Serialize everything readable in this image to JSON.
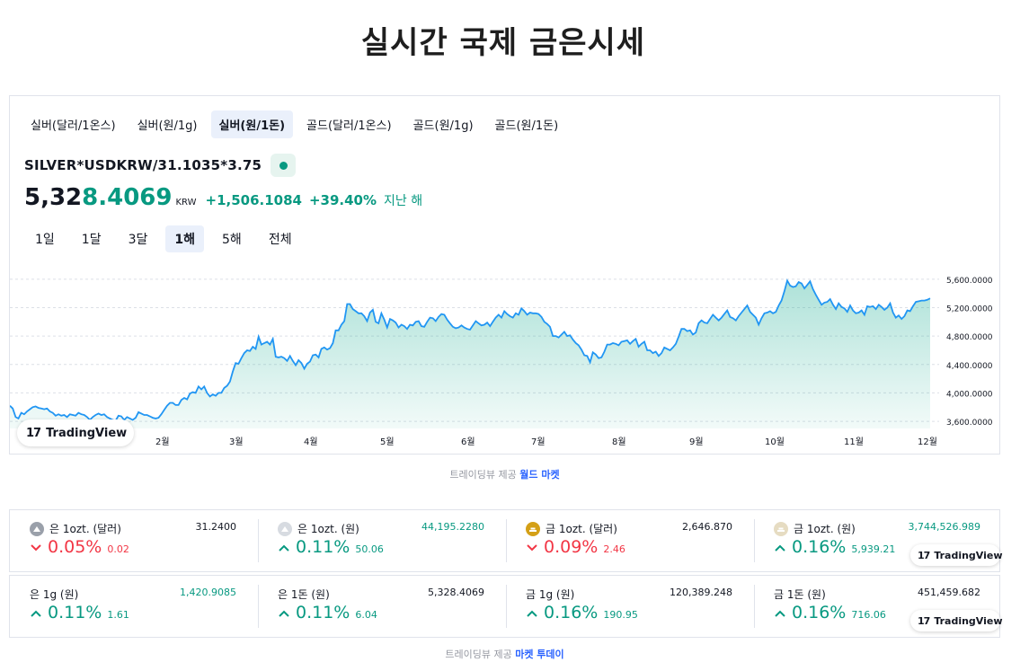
{
  "page": {
    "title": "실시간 국제 금은시세"
  },
  "widget": {
    "symbol_tabs": [
      {
        "label": "실버(달러/1온스)",
        "active": false
      },
      {
        "label": "실버(원/1g)",
        "active": false
      },
      {
        "label": "실버(원/1돈)",
        "active": true
      },
      {
        "label": "골드(달러/1온스)",
        "active": false
      },
      {
        "label": "골드(원/1g)",
        "active": false
      },
      {
        "label": "골드(원/1돈)",
        "active": false
      }
    ],
    "symbol": "SILVER*USDKRW/31.1035*3.75",
    "price_main": "5,32",
    "price_tail": "8.4069",
    "unit": "KRW",
    "change": "+1,506.1084",
    "change_pct": "+39.40%",
    "period": "지난 해",
    "range_tabs": [
      {
        "label": "1일",
        "active": false
      },
      {
        "label": "1달",
        "active": false
      },
      {
        "label": "3달",
        "active": false
      },
      {
        "label": "1해",
        "active": true
      },
      {
        "label": "5해",
        "active": false
      },
      {
        "label": "전체",
        "active": false
      }
    ],
    "tv_brand": "TradingView"
  },
  "chart_data": {
    "type": "area",
    "x_labels": [
      "2월",
      "3월",
      "4월",
      "5월",
      "6월",
      "7월",
      "8월",
      "9월",
      "10월",
      "11월",
      "12월"
    ],
    "y_ticks": [
      "3,600.0000",
      "4,000.0000",
      "4,400.0000",
      "4,800.0000",
      "5,200.0000",
      "5,600.0000"
    ],
    "ylim": [
      3500,
      5800
    ],
    "grid": true,
    "line_color": "#2196f3",
    "values": [
      3820,
      3780,
      3660,
      3640,
      3720,
      3700,
      3740,
      3770,
      3800,
      3810,
      3790,
      3780,
      3770,
      3780,
      3740,
      3720,
      3680,
      3700,
      3680,
      3690,
      3660,
      3700,
      3690,
      3680,
      3720,
      3700,
      3690,
      3660,
      3620,
      3660,
      3690,
      3710,
      3690,
      3700,
      3660,
      3640,
      3620,
      3610,
      3680,
      3670,
      3620,
      3660,
      3640,
      3620,
      3650,
      3730,
      3710,
      3690,
      3690,
      3670,
      3650,
      3640,
      3650,
      3700,
      3760,
      3820,
      3860,
      3860,
      3830,
      3830,
      3900,
      3930,
      3910,
      3990,
      4010,
      4000,
      4090,
      4050,
      4090,
      4000,
      3950,
      3980,
      3960,
      4000,
      4000,
      4070,
      4100,
      4160,
      4300,
      4420,
      4410,
      4490,
      4560,
      4600,
      4590,
      4650,
      4620,
      4790,
      4680,
      4700,
      4720,
      4680,
      4760,
      4510,
      4500,
      4510,
      4490,
      4450,
      4520,
      4450,
      4390,
      4460,
      4420,
      4340,
      4410,
      4440,
      4530,
      4540,
      4500,
      4620,
      4640,
      4610,
      4630,
      4700,
      4880,
      4880,
      4960,
      5010,
      5250,
      5250,
      5180,
      5150,
      5120,
      5120,
      5080,
      5010,
      5130,
      5170,
      5000,
      4980,
      5120,
      5030,
      4920,
      5040,
      5020,
      4990,
      4920,
      4960,
      4940,
      4900,
      4960,
      4950,
      5000,
      5010,
      4940,
      4930,
      5000,
      5060,
      5050,
      5010,
      5070,
      5110,
      5100,
      5030,
      4980,
      4930,
      4910,
      4920,
      4950,
      4920,
      4900,
      4890,
      4950,
      5010,
      4980,
      4950,
      4960,
      4990,
      4940,
      5000,
      5060,
      5100,
      5060,
      5150,
      5110,
      5080,
      5060,
      5120,
      5100,
      5190,
      5150,
      5100,
      5130,
      5120,
      5120,
      5110,
      5070,
      5000,
      4970,
      4930,
      4800,
      4800,
      4780,
      4820,
      4860,
      4800,
      4810,
      4750,
      4700,
      4670,
      4610,
      4530,
      4520,
      4430,
      4570,
      4540,
      4490,
      4500,
      4580,
      4680,
      4680,
      4700,
      4690,
      4670,
      4720,
      4730,
      4740,
      4690,
      4730,
      4760,
      4650,
      4690,
      4720,
      4600,
      4600,
      4560,
      4580,
      4520,
      4560,
      4640,
      4620,
      4600,
      4640,
      4690,
      4790,
      4900,
      4900,
      4870,
      4880,
      4820,
      4850,
      4980,
      5020,
      4990,
      4980,
      5040,
      5100,
      5060,
      5020,
      5060,
      5110,
      5160,
      5070,
      5050,
      5020,
      5080,
      5130,
      5180,
      5230,
      5140,
      5100,
      5060,
      4960,
      5050,
      5120,
      5130,
      5150,
      5120,
      5140,
      5230,
      5300,
      5430,
      5580,
      5510,
      5490,
      5500,
      5560,
      5540,
      5470,
      5520,
      5570,
      5460,
      5380,
      5310,
      5240,
      5270,
      5280,
      5320,
      5240,
      5180,
      5260,
      5210,
      5190,
      5140,
      5230,
      5160,
      5120,
      5130,
      5160,
      5100,
      5220,
      5210,
      5220,
      5180,
      5240,
      5210,
      5170,
      5200,
      5260,
      5130,
      5060,
      5090,
      5040,
      5080,
      5160,
      5150,
      5220,
      5280,
      5290,
      5300,
      5300,
      5310,
      5330
    ]
  },
  "credits": {
    "top": {
      "prefix": "트레이딩뷰 제공",
      "link": "월드 마켓"
    },
    "bottom": {
      "prefix": "트레이딩뷰 제공",
      "link": "마켓 투데이"
    }
  },
  "tickers_row1": [
    {
      "name": "은 1ozt. (달러)",
      "price": "31.2400",
      "pct": "0.05%",
      "abs": "0.02",
      "dir": "down",
      "coin": "silver",
      "price_color": "neutral"
    },
    {
      "name": "은 1ozt. (원)",
      "price": "44,195.2280",
      "pct": "0.11%",
      "abs": "50.06",
      "dir": "up",
      "coin": "silver-light",
      "price_color": "green"
    },
    {
      "name": "금 1ozt. (달러)",
      "price": "2,646.870",
      "pct": "0.09%",
      "abs": "2.46",
      "dir": "down",
      "coin": "gold",
      "price_color": "neutral"
    },
    {
      "name": "금 1ozt. (원)",
      "price": "3,744,526.989",
      "pct": "0.16%",
      "abs": "5,939.21",
      "dir": "up",
      "coin": "gold-light",
      "price_color": "green"
    }
  ],
  "tickers_row2": [
    {
      "name": "은 1g (원)",
      "price": "1,420.9085",
      "pct": "0.11%",
      "abs": "1.61",
      "dir": "up",
      "price_color": "green"
    },
    {
      "name": "은 1돈 (원)",
      "price": "5,328.4069",
      "pct": "0.11%",
      "abs": "6.04",
      "dir": "up",
      "price_color": "neutral"
    },
    {
      "name": "금 1g (원)",
      "price": "120,389.248",
      "pct": "0.16%",
      "abs": "190.95",
      "dir": "up",
      "price_color": "neutral"
    },
    {
      "name": "금 1돈 (원)",
      "price": "451,459.682",
      "pct": "0.16%",
      "abs": "716.06",
      "dir": "up",
      "price_color": "neutral"
    }
  ],
  "tv_badge_mini": "TradingView"
}
